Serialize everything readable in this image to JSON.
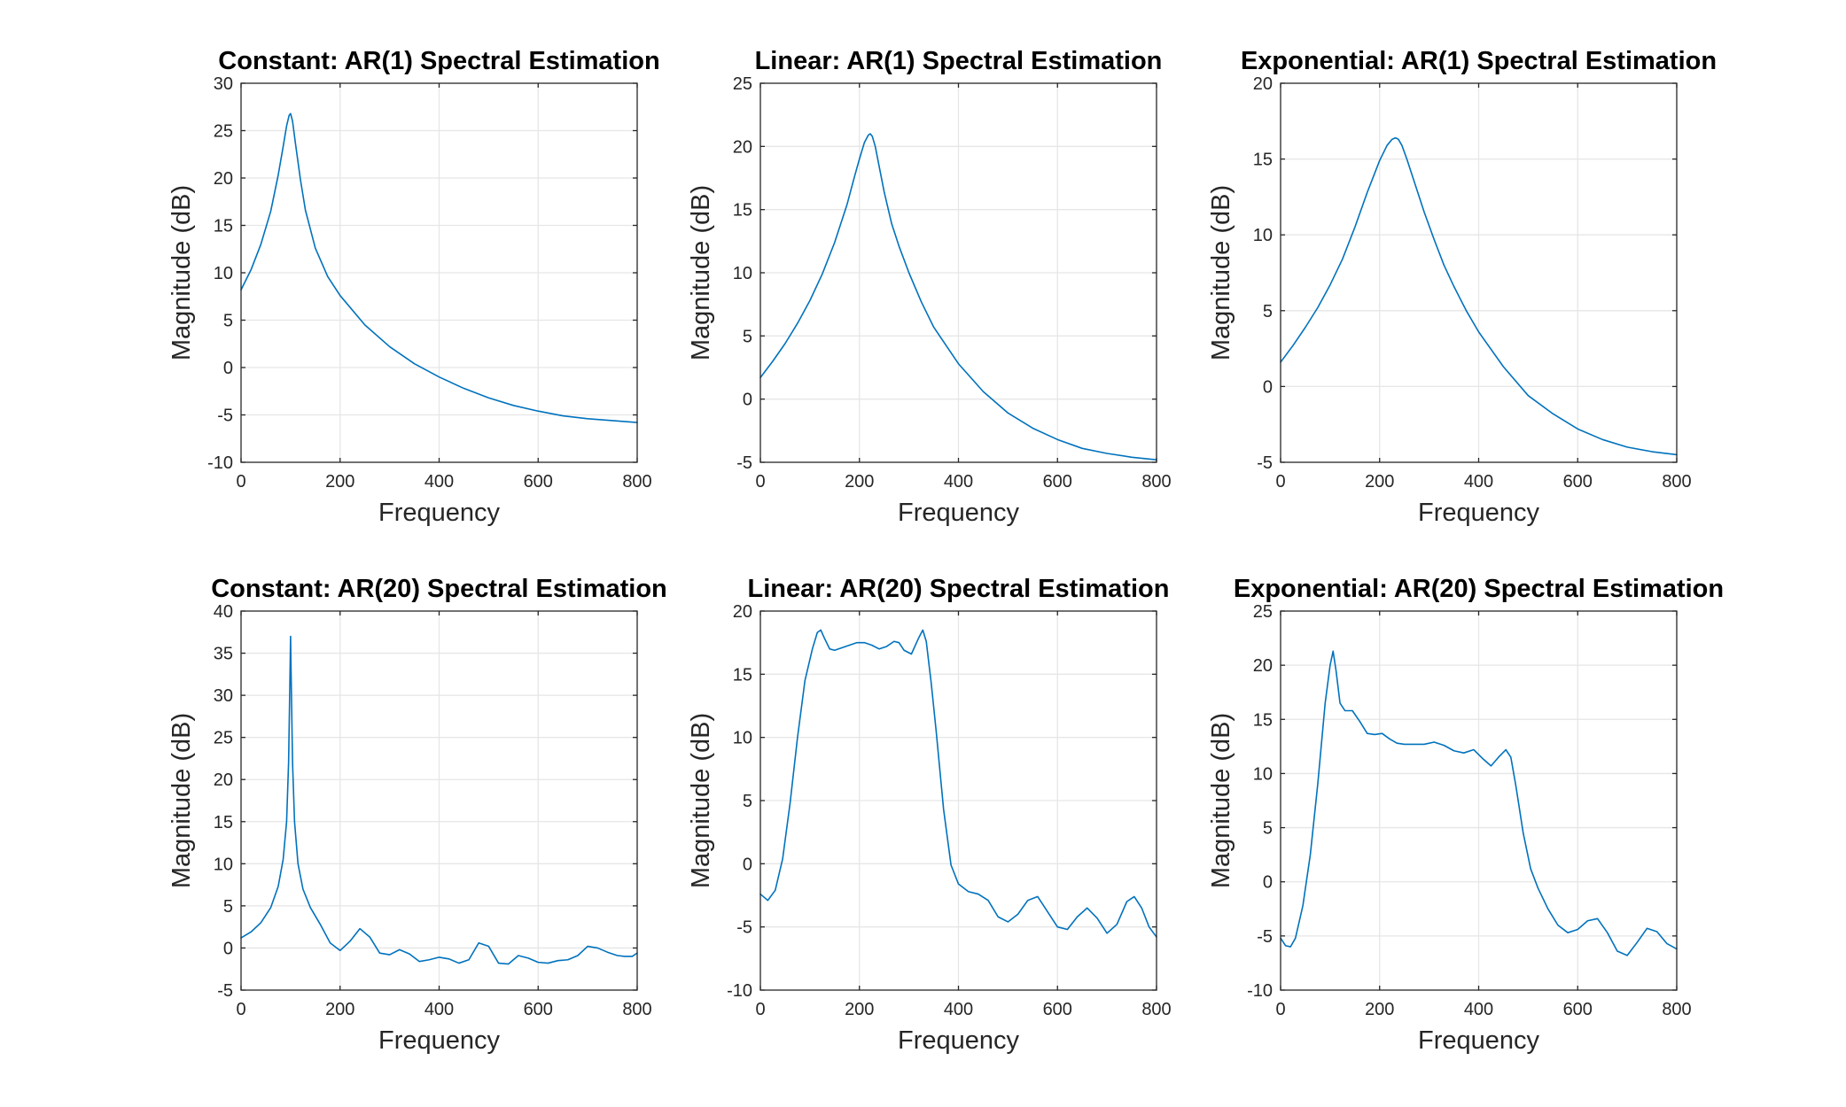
{
  "figure": {
    "background": "#ffffff",
    "axes_color": "#262626",
    "grid_color": "#e6e6e6"
  },
  "chart_data": [
    {
      "type": "line",
      "title": "Constant: AR(1) Spectral Estimation",
      "xlabel": "Frequency",
      "ylabel": "Magnitude (dB)",
      "xlim": [
        0,
        800
      ],
      "ylim": [
        -10,
        30
      ],
      "xticks": [
        0,
        200,
        400,
        600,
        800
      ],
      "yticks": [
        -10,
        -5,
        0,
        5,
        10,
        15,
        20,
        25,
        30
      ],
      "grid": true,
      "series": [
        {
          "color": "#0072bd",
          "x": [
            0,
            20,
            40,
            60,
            75,
            85,
            92,
            97,
            100,
            104,
            110,
            120,
            130,
            150,
            175,
            200,
            250,
            300,
            350,
            400,
            450,
            500,
            550,
            600,
            650,
            700,
            750,
            800
          ],
          "y": [
            8.2,
            10.3,
            13.0,
            16.5,
            20.3,
            23.3,
            25.5,
            26.6,
            26.8,
            26.0,
            23.6,
            19.8,
            16.6,
            12.6,
            9.6,
            7.6,
            4.5,
            2.2,
            0.4,
            -1.0,
            -2.2,
            -3.2,
            -4.0,
            -4.6,
            -5.1,
            -5.4,
            -5.6,
            -5.8
          ]
        }
      ]
    },
    {
      "type": "line",
      "title": "Linear: AR(1) Spectral Estimation",
      "xlabel": "Frequency",
      "ylabel": "Magnitude (dB)",
      "xlim": [
        0,
        800
      ],
      "ylim": [
        -5,
        25
      ],
      "xticks": [
        0,
        200,
        400,
        600,
        800
      ],
      "yticks": [
        -5,
        0,
        5,
        10,
        15,
        20,
        25
      ],
      "grid": true,
      "series": [
        {
          "color": "#0072bd",
          "x": [
            0,
            25,
            50,
            75,
            100,
            125,
            150,
            175,
            190,
            200,
            210,
            218,
            222,
            226,
            232,
            240,
            250,
            265,
            280,
            300,
            325,
            350,
            400,
            450,
            500,
            550,
            600,
            650,
            700,
            750,
            800
          ],
          "y": [
            1.7,
            3.0,
            4.4,
            6.0,
            7.8,
            9.9,
            12.4,
            15.4,
            17.6,
            19.0,
            20.3,
            20.9,
            21.0,
            20.8,
            20.0,
            18.4,
            16.4,
            13.9,
            12.1,
            10.0,
            7.7,
            5.7,
            2.8,
            0.6,
            -1.1,
            -2.3,
            -3.2,
            -3.9,
            -4.3,
            -4.6,
            -4.8
          ]
        }
      ]
    },
    {
      "type": "line",
      "title": "Exponential: AR(1) Spectral Estimation",
      "xlabel": "Frequency",
      "ylabel": "Magnitude (dB)",
      "xlim": [
        0,
        800
      ],
      "ylim": [
        -5,
        20
      ],
      "xticks": [
        0,
        200,
        400,
        600,
        800
      ],
      "yticks": [
        -5,
        0,
        5,
        10,
        15,
        20
      ],
      "grid": true,
      "series": [
        {
          "color": "#0072bd",
          "x": [
            0,
            25,
            50,
            75,
            100,
            125,
            150,
            175,
            200,
            215,
            225,
            232,
            238,
            245,
            255,
            270,
            290,
            310,
            330,
            350,
            375,
            400,
            450,
            500,
            550,
            600,
            650,
            700,
            750,
            800
          ],
          "y": [
            1.6,
            2.7,
            3.9,
            5.2,
            6.7,
            8.4,
            10.5,
            12.8,
            14.9,
            15.9,
            16.3,
            16.4,
            16.3,
            15.9,
            15.0,
            13.5,
            11.5,
            9.7,
            8.0,
            6.6,
            5.0,
            3.6,
            1.3,
            -0.6,
            -1.8,
            -2.8,
            -3.5,
            -4.0,
            -4.3,
            -4.5
          ]
        }
      ]
    },
    {
      "type": "line",
      "title": "Constant: AR(20) Spectral Estimation",
      "xlabel": "Frequency",
      "ylabel": "Magnitude (dB)",
      "xlim": [
        0,
        800
      ],
      "ylim": [
        -5,
        40
      ],
      "xticks": [
        0,
        200,
        400,
        600,
        800
      ],
      "yticks": [
        -5,
        0,
        5,
        10,
        15,
        20,
        25,
        30,
        35,
        40
      ],
      "grid": true,
      "series": [
        {
          "color": "#0072bd",
          "x": [
            0,
            20,
            40,
            60,
            75,
            85,
            92,
            96,
            99,
            100,
            101,
            104,
            108,
            115,
            125,
            140,
            160,
            180,
            200,
            220,
            240,
            260,
            280,
            300,
            320,
            340,
            360,
            380,
            400,
            420,
            440,
            460,
            480,
            500,
            520,
            540,
            560,
            580,
            600,
            620,
            640,
            660,
            680,
            700,
            720,
            740,
            760,
            775,
            790,
            800
          ],
          "y": [
            1.2,
            1.9,
            3.0,
            4.8,
            7.3,
            10.5,
            15.0,
            22.0,
            33.0,
            37.0,
            33.0,
            22.0,
            15.0,
            10.0,
            7.0,
            4.8,
            2.8,
            0.6,
            -0.3,
            0.8,
            2.3,
            1.3,
            -0.6,
            -0.8,
            -0.2,
            -0.7,
            -1.6,
            -1.4,
            -1.1,
            -1.3,
            -1.8,
            -1.4,
            0.6,
            0.2,
            -1.8,
            -1.9,
            -0.9,
            -1.2,
            -1.7,
            -1.8,
            -1.5,
            -1.4,
            -0.9,
            0.2,
            0.0,
            -0.5,
            -0.9,
            -1.0,
            -1.0,
            -0.6
          ]
        }
      ]
    },
    {
      "type": "line",
      "title": "Linear: AR(20) Spectral Estimation",
      "xlabel": "Frequency",
      "ylabel": "Magnitude (dB)",
      "xlim": [
        0,
        800
      ],
      "ylim": [
        -10,
        20
      ],
      "xticks": [
        0,
        200,
        400,
        600,
        800
      ],
      "yticks": [
        -10,
        -5,
        0,
        5,
        10,
        15,
        20
      ],
      "grid": true,
      "series": [
        {
          "color": "#0072bd",
          "x": [
            0,
            15,
            30,
            45,
            60,
            75,
            90,
            105,
            115,
            122,
            130,
            140,
            150,
            165,
            180,
            195,
            210,
            225,
            240,
            255,
            270,
            280,
            290,
            305,
            320,
            328,
            335,
            345,
            355,
            370,
            385,
            400,
            420,
            440,
            460,
            480,
            500,
            520,
            540,
            560,
            580,
            600,
            620,
            640,
            660,
            680,
            700,
            720,
            740,
            755,
            770,
            785,
            800
          ],
          "y": [
            -2.4,
            -2.9,
            -2.1,
            0.4,
            4.8,
            10.0,
            14.5,
            17.0,
            18.3,
            18.5,
            17.8,
            17.0,
            16.9,
            17.1,
            17.3,
            17.5,
            17.5,
            17.3,
            17.0,
            17.2,
            17.6,
            17.5,
            16.9,
            16.6,
            17.9,
            18.5,
            17.6,
            14.3,
            10.5,
            4.3,
            -0.1,
            -1.6,
            -2.2,
            -2.4,
            -2.9,
            -4.2,
            -4.6,
            -4.0,
            -2.9,
            -2.6,
            -3.8,
            -5.0,
            -5.2,
            -4.2,
            -3.5,
            -4.3,
            -5.5,
            -4.8,
            -3.0,
            -2.6,
            -3.5,
            -5.0,
            -5.8
          ]
        }
      ]
    },
    {
      "type": "line",
      "title": "Exponential: AR(20) Spectral Estimation",
      "xlabel": "Frequency",
      "ylabel": "Magnitude (dB)",
      "xlim": [
        0,
        800
      ],
      "ylim": [
        -10,
        25
      ],
      "xticks": [
        0,
        200,
        400,
        600,
        800
      ],
      "yticks": [
        -10,
        -5,
        0,
        5,
        10,
        15,
        20,
        25
      ],
      "grid": true,
      "series": [
        {
          "color": "#0072bd",
          "x": [
            0,
            10,
            20,
            30,
            45,
            60,
            75,
            90,
            100,
            106,
            112,
            120,
            130,
            145,
            160,
            175,
            190,
            205,
            220,
            235,
            250,
            270,
            290,
            310,
            330,
            350,
            370,
            390,
            410,
            425,
            440,
            455,
            465,
            475,
            490,
            505,
            520,
            540,
            560,
            580,
            600,
            620,
            640,
            660,
            680,
            700,
            720,
            740,
            760,
            780,
            800
          ],
          "y": [
            -5.2,
            -5.9,
            -6.0,
            -5.2,
            -2.2,
            2.5,
            9.0,
            16.5,
            20.0,
            21.3,
            19.5,
            16.5,
            15.8,
            15.8,
            14.8,
            13.7,
            13.6,
            13.7,
            13.2,
            12.8,
            12.7,
            12.7,
            12.7,
            12.9,
            12.6,
            12.1,
            11.9,
            12.2,
            11.3,
            10.7,
            11.5,
            12.2,
            11.5,
            8.9,
            4.5,
            1.2,
            -0.6,
            -2.5,
            -4.0,
            -4.7,
            -4.4,
            -3.6,
            -3.4,
            -4.7,
            -6.4,
            -6.8,
            -5.6,
            -4.3,
            -4.6,
            -5.7,
            -6.2
          ]
        }
      ]
    }
  ]
}
